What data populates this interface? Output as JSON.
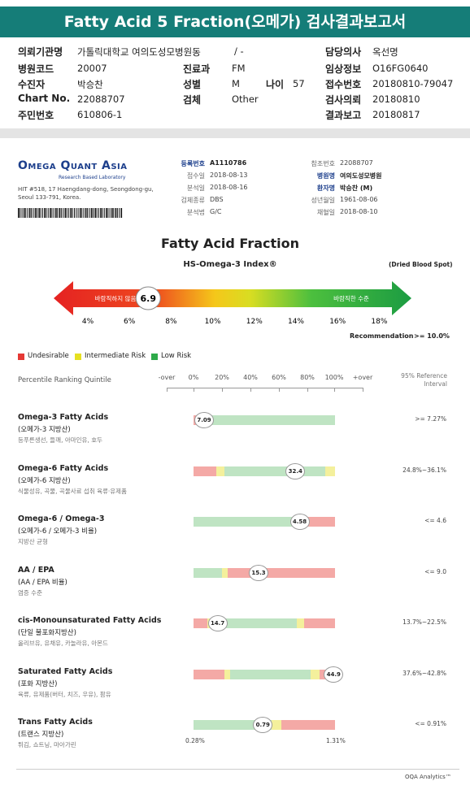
{
  "header": {
    "title": "Fatty Acid 5 Fraction(오메가) 검사결과보고서"
  },
  "info": {
    "cells": [
      {
        "label": "의뢰기관명",
        "value": "가톨릭대학교 여의도성모병원동"
      },
      {
        "value": "/ -"
      },
      {
        "label": "담당의사",
        "value": "옥선명"
      },
      {
        "label": "병원코드",
        "value": "20007"
      },
      {
        "label": "진료과",
        "value": "FM"
      },
      {
        "label": "임상정보",
        "value": "O16FG0640"
      },
      {
        "label": "수진자",
        "value": "박승찬"
      },
      {
        "label": "성별",
        "value": "M"
      },
      {
        "label": "나이",
        "value": "57"
      },
      {
        "label": "접수번호",
        "value": "20180810-79047"
      },
      {
        "label": "Chart No.",
        "value": "22088707"
      },
      {
        "label": "검체",
        "value": "Other"
      },
      {
        "label": "검사의뢰",
        "value": "20180810"
      },
      {
        "label": "주민번호",
        "value": "610806-1"
      },
      {
        "label": "결과보고",
        "value": "20180817"
      }
    ]
  },
  "lab": {
    "name": "Omega Quant Asia",
    "tagline": "Research Based Laboratory",
    "address": "HIT #518, 17 Haengdang-dong, Seongdong-gu, Seoul 133-791, Korea."
  },
  "meta": {
    "left": [
      {
        "label": "등록번호",
        "value": "A1110786"
      },
      {
        "label": "접수일",
        "value": "2018-08-13"
      },
      {
        "label": "분석일",
        "value": "2018-08-16"
      },
      {
        "label": "검체종류",
        "value": "DBS"
      },
      {
        "label": "분석법",
        "value": "G/C"
      }
    ],
    "right": [
      {
        "label": "참조번호",
        "value": "22088707"
      },
      {
        "label": "병원명",
        "value": "여의도성모병원"
      },
      {
        "label": "환자명",
        "value": "박승찬 (M)"
      },
      {
        "label": "성년월일",
        "value": "1961-08-06"
      },
      {
        "label": "채혈일",
        "value": "2018-08-10"
      }
    ]
  },
  "report": {
    "title": "Fatty Acid Fraction",
    "index_name": "HS-Omega-3 Index®",
    "sample_note": "(Dried Blood Spot)",
    "gauge": {
      "low_label": "바람직하지 않음",
      "high_label": "바람직한 수준",
      "value": 6.9,
      "ticks": [
        {
          "value": 4,
          "label": "4%"
        },
        {
          "value": 6,
          "label": "6%"
        },
        {
          "value": 8,
          "label": "8%"
        },
        {
          "value": 10,
          "label": "10%"
        },
        {
          "value": 12,
          "label": "12%"
        },
        {
          "value": 14,
          "label": "14%"
        },
        {
          "value": 16,
          "label": "16%"
        },
        {
          "value": 18,
          "label": "18%"
        }
      ]
    },
    "recommendation_label": "Recommendation",
    "recommendation": ">= 10.0%",
    "legend": [
      {
        "name": "Undesirable",
        "color": "#e53935"
      },
      {
        "name": "Intermediate Risk",
        "color": "#e6e020"
      },
      {
        "name": "Low Risk",
        "color": "#2eaa4a"
      }
    ],
    "percentile_label": "Percentile Ranking Quintile",
    "columns": [
      "-over",
      "0%",
      "20%",
      "40%",
      "60%",
      "80%",
      "100%",
      "+over"
    ],
    "reference_header": "95% Reference Interval",
    "rows": [
      {
        "name": "Omega-3 Fatty Acids",
        "korean": "(오메가-3 지방산)",
        "description": "등푸른생선, 들깨, 아마인유, 호두",
        "value": "7.09",
        "reference": ">= 7.27%"
      },
      {
        "name": "Omega-6 Fatty Acids",
        "korean": "(오메가-6 지방산)",
        "description": "식물성유, 곡물, 곡물사료 섭취 육류·유제품",
        "value": "32.4",
        "reference": "24.8%~36.1%"
      },
      {
        "name": "Omega-6 / Omega-3",
        "korean": "(오메가-6 / 오메가-3 비율)",
        "description": "지방산 균형",
        "value": "4.58",
        "reference": "<= 4.6"
      },
      {
        "name": "AA / EPA",
        "korean": "(AA / EPA 비율)",
        "description": "염증 수준",
        "value": "15.3",
        "reference": "<= 9.0"
      },
      {
        "name": "cis-Monounsaturated Fatty Acids",
        "korean": "(단일 불포화지방산)",
        "description": "올리브유, 유채유, 카놀라유, 아몬드",
        "value": "14.7",
        "reference": "13.7%~22.5%"
      },
      {
        "name": "Saturated Fatty Acids",
        "korean": "(포화 지방산)",
        "description": "육류, 유제품(버터, 치즈, 우유), 팜유",
        "value": "44.9",
        "reference": "37.6%~42.8%"
      },
      {
        "name": "Trans Fatty Acids",
        "korean": "(트랜스 지방산)",
        "description": "튀김, 쇼트닝, 마아가린",
        "value": "0.79",
        "reference": "<= 0.91%",
        "range_min": "0.28%",
        "range_max": "1.31%"
      }
    ],
    "footer": "OQA Analytics™"
  }
}
